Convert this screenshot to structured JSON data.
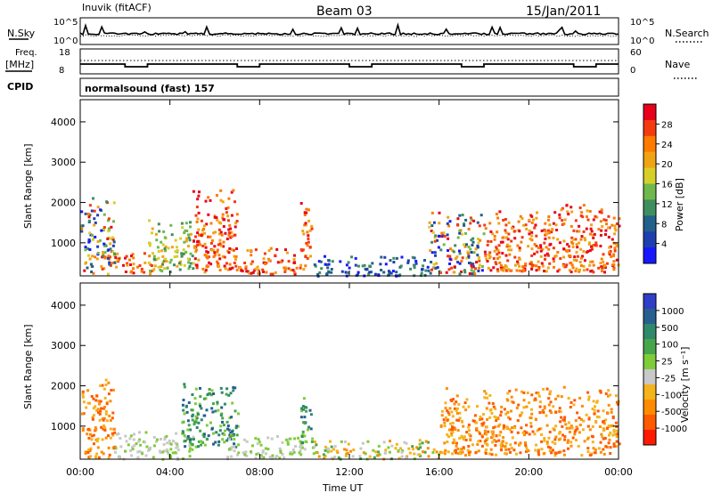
{
  "header": {
    "station": "Inuvik (fitACF)",
    "beam": "Beam 03",
    "date": "15/Jan/2011"
  },
  "status_panels": {
    "nsky_label": "N.Sky",
    "nsky_ticks": [
      "10^5",
      "10^0"
    ],
    "nsearch_label": "N.Search",
    "nsearch_ticks": [
      "10^5",
      "10^0"
    ],
    "freq_label": "Freq.",
    "freq_unit": "[MHz]",
    "freq_ticks": [
      "18",
      "8"
    ],
    "nave_label": "Nave",
    "nave_ticks": [
      "60",
      "0"
    ],
    "cpid_label": "CPID",
    "cpid_value": "normalsound (fast) 157"
  },
  "chart_data": [
    {
      "type": "heatmap",
      "ylabel": "Slant Range [km]",
      "yticks": [
        1000,
        2000,
        3000,
        4000
      ],
      "ylim": [
        180,
        4550
      ],
      "xlim": [
        0,
        24
      ],
      "colorbar": {
        "label": "Power [dB]",
        "ticks": [
          "28",
          "24",
          "20",
          "16",
          "12",
          "8",
          "4"
        ],
        "colors": [
          "#e8001b",
          "#f53a10",
          "#ff7a00",
          "#f0a414",
          "#d6cf2a",
          "#70b84c",
          "#3f8f5e",
          "#23608a",
          "#1f3fb0",
          "#1818ff"
        ]
      },
      "echo_regions": [
        {
          "t": [
            0.0,
            1.5
          ],
          "r": [
            250,
            2200
          ],
          "level": "mixed"
        },
        {
          "t": [
            1.5,
            3.2
          ],
          "r": [
            250,
            800
          ],
          "level": "strong"
        },
        {
          "t": [
            3.0,
            5.0
          ],
          "r": [
            300,
            1600
          ],
          "level": "moderate"
        },
        {
          "t": [
            5.0,
            7.0
          ],
          "r": [
            300,
            2400
          ],
          "level": "strong"
        },
        {
          "t": [
            7.0,
            10.0
          ],
          "r": [
            250,
            900
          ],
          "level": "strong"
        },
        {
          "t": [
            9.8,
            10.3
          ],
          "r": [
            600,
            2100
          ],
          "level": "strong"
        },
        {
          "t": [
            10.3,
            15.5
          ],
          "r": [
            200,
            700
          ],
          "level": "weak"
        },
        {
          "t": [
            15.5,
            18.0
          ],
          "r": [
            250,
            1800
          ],
          "level": "mixed"
        },
        {
          "t": [
            18.0,
            24.0
          ],
          "r": [
            300,
            2000
          ],
          "level": "strong"
        }
      ]
    },
    {
      "type": "heatmap",
      "xlabel": "Time UT",
      "ylabel": "Slant Range [km]",
      "yticks": [
        1000,
        2000,
        3000,
        4000
      ],
      "ylim": [
        180,
        4550
      ],
      "xticks": [
        "00:00",
        "04:00",
        "08:00",
        "12:00",
        "16:00",
        "20:00",
        "00:00"
      ],
      "xlim": [
        0,
        24
      ],
      "colorbar": {
        "label": "Velocity [m s⁻¹]",
        "ticks": [
          "1000",
          "500",
          "100",
          "25",
          "-25",
          "-100",
          "-500",
          "-1000"
        ],
        "colors": [
          "#2f3fc8",
          "#27608e",
          "#2e8a6a",
          "#47a64a",
          "#7fcc3a",
          "#c8c8c8",
          "#f5b31c",
          "#ff8c00",
          "#ff5a00",
          "#ff1a00"
        ]
      },
      "echo_regions": [
        {
          "t": [
            0.0,
            1.5
          ],
          "r": [
            250,
            2200
          ],
          "level": "negative"
        },
        {
          "t": [
            1.5,
            5.0
          ],
          "r": [
            200,
            900
          ],
          "level": "ground-scatter"
        },
        {
          "t": [
            4.5,
            7.0
          ],
          "r": [
            500,
            2100
          ],
          "level": "positive"
        },
        {
          "t": [
            6.5,
            10.0
          ],
          "r": [
            200,
            800
          ],
          "level": "ground-scatter"
        },
        {
          "t": [
            9.8,
            10.3
          ],
          "r": [
            600,
            2000
          ],
          "level": "positive"
        },
        {
          "t": [
            10.3,
            16.0
          ],
          "r": [
            200,
            700
          ],
          "level": "mixed"
        },
        {
          "t": [
            16.0,
            24.0
          ],
          "r": [
            300,
            2000
          ],
          "level": "negative"
        }
      ]
    }
  ]
}
